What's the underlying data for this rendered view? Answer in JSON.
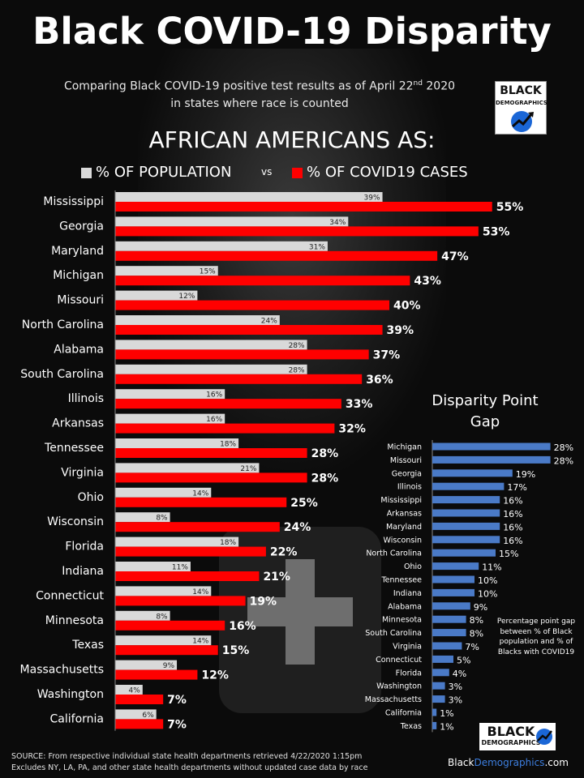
{
  "title": "Black COVID-19 Disparity",
  "subtitle_line1": "Comparing Black COVID-19 positive test results as of April 22",
  "subtitle_sup": "nd",
  "subtitle_year": " 2020",
  "subtitle_line2": "in states where race is counted",
  "heading": "AFRICAN AMERICANS AS:",
  "logo": {
    "line1": "BLACK",
    "line2": "DEMOGRAPHICS"
  },
  "colors": {
    "population": "#d9d9d9",
    "cases": "#ff0000",
    "gap": "#4a7ac7",
    "background": "#0b0b0b"
  },
  "chart_data": [
    {
      "type": "bar",
      "title": "AFRICAN AMERICANS AS:",
      "legend": "top",
      "categories": [
        "Mississippi",
        "Georgia",
        "Maryland",
        "Michigan",
        "Missouri",
        "North Carolina",
        "Alabama",
        "South Carolina",
        "Illinois",
        "Arkansas",
        "Tennessee",
        "Virginia",
        "Ohio",
        "Wisconsin",
        "Florida",
        "Indiana",
        "Connecticut",
        "Minnesota",
        "Texas",
        "Massachusetts",
        "Washington",
        "California"
      ],
      "series": [
        {
          "name": "% OF POPULATION",
          "values": [
            39,
            34,
            31,
            15,
            12,
            24,
            28,
            28,
            16,
            16,
            18,
            21,
            14,
            8,
            18,
            11,
            14,
            8,
            14,
            9,
            4,
            6
          ]
        },
        {
          "name": "% OF COVID19 CASES",
          "values": [
            55,
            53,
            47,
            43,
            40,
            39,
            37,
            36,
            33,
            32,
            28,
            28,
            25,
            24,
            22,
            21,
            19,
            16,
            15,
            12,
            7,
            7
          ]
        }
      ],
      "vs_label": "vs",
      "value_suffix": "%",
      "orientation": "horizontal"
    },
    {
      "type": "bar",
      "title": "Disparity Point Gap",
      "title_line1": "Disparity Point",
      "title_line2": "Gap",
      "categories": [
        "Michigan",
        "Missouri",
        "Georgia",
        "Illinois",
        "Mississippi",
        "Arkansas",
        "Maryland",
        "Wisconsin",
        "North Carolina",
        "Ohio",
        "Tennessee",
        "Indiana",
        "Alabama",
        "Minnesota",
        "South Carolina",
        "Virginia",
        "Connecticut",
        "Florida",
        "Washington",
        "Massachusetts",
        "California",
        "Texas"
      ],
      "values": [
        28,
        28,
        19,
        17,
        16,
        16,
        16,
        16,
        15,
        11,
        10,
        10,
        9,
        8,
        8,
        7,
        5,
        4,
        3,
        3,
        1,
        1
      ],
      "value_suffix": "%",
      "orientation": "horizontal",
      "note": "Percentage point gap between % of Black population and % of Blacks with COVID19"
    }
  ],
  "source_line1": "SOURCE: From respective individual state health departments retrieved 4/22/2020 1:15pm",
  "source_line2": "Excludes NY, LA, PA, and other state health departments without updated case data by race",
  "site": {
    "black": "Black",
    "demo": "Demographics",
    "com": ".com"
  }
}
